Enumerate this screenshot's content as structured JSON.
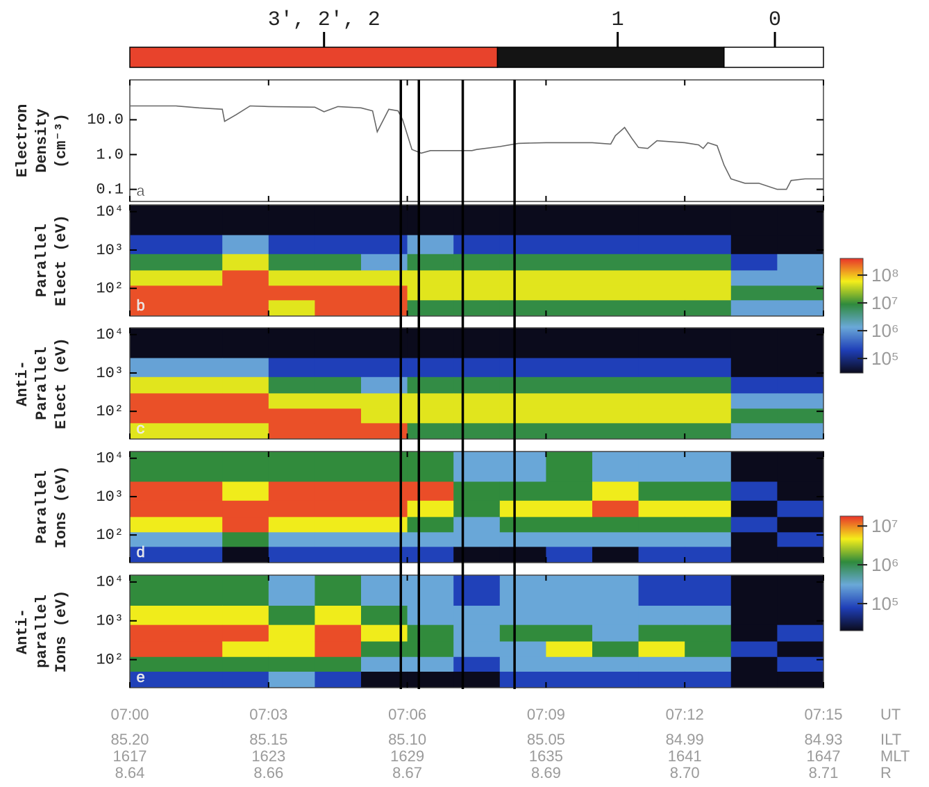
{
  "chart_data": [
    {
      "type": "timeline",
      "xlim": [
        0,
        15
      ],
      "segments": [
        {
          "start": 0,
          "end": 7.95,
          "color": "#e8432c"
        },
        {
          "start": 7.95,
          "end": 12.85,
          "color": "#141414"
        },
        {
          "start": 12.85,
          "end": 15,
          "color": "#ffffff"
        }
      ],
      "markers": [
        {
          "x": 4.2,
          "label": "3′, 2′, 2"
        },
        {
          "x": 10.55,
          "label": "1"
        },
        {
          "x": 13.95,
          "label": "0"
        }
      ]
    },
    {
      "type": "line",
      "panel_label": "a",
      "ylabel": [
        "Electron",
        "Density",
        "(cm⁻³)"
      ],
      "color": "#666666",
      "xlim": [
        0,
        15
      ],
      "ylim": [
        0.045,
        140
      ],
      "log_y": true,
      "yticks": [
        {
          "value": 0.1,
          "label": "0.1"
        },
        {
          "value": 1,
          "label": "1.0"
        },
        {
          "value": 10,
          "label": "10.0"
        }
      ],
      "x": [
        0,
        1,
        1.5,
        2.0,
        2.05,
        2.3,
        2.6,
        3,
        4,
        4.2,
        4.5,
        5,
        5.25,
        5.35,
        5.6,
        5.8,
        5.9,
        6.1,
        6.3,
        6.5,
        7,
        7.4,
        7.5,
        8,
        8.4,
        9,
        10,
        10.4,
        10.5,
        10.7,
        10.85,
        11,
        11.2,
        11.4,
        12,
        12.3,
        12.4,
        12.5,
        12.7,
        12.85,
        13,
        13.3,
        13.6,
        14,
        14.2,
        14.3,
        14.6,
        15
      ],
      "values": [
        25,
        25,
        22,
        20,
        9,
        14,
        25,
        24,
        23,
        17,
        24,
        22,
        18,
        4.5,
        20,
        18,
        10,
        1.4,
        1.1,
        1.3,
        1.3,
        1.3,
        1.4,
        1.7,
        2.1,
        2.2,
        2.2,
        2.0,
        3.5,
        6,
        3.0,
        1.6,
        1.5,
        2.5,
        2.2,
        1.9,
        1.5,
        2.2,
        1.8,
        0.5,
        0.2,
        0.15,
        0.15,
        0.1,
        0.1,
        0.18,
        0.2,
        0.2
      ],
      "vlines": [
        5.86,
        6.25,
        7.2,
        8.32
      ]
    },
    {
      "type": "heatmap",
      "panel_label": "b",
      "ylabel": [
        "Parallel",
        "Elect (eV)"
      ],
      "xlim": [
        0,
        15
      ],
      "ylim": [
        19,
        15000
      ],
      "log_y": true,
      "yticks": [
        {
          "value": 100,
          "label": "10²"
        },
        {
          "value": 1000,
          "label": "10³"
        },
        {
          "value": 10000,
          "label": "10⁴"
        }
      ],
      "xbins": [
        0,
        1,
        2,
        3,
        4,
        5,
        6,
        7,
        8,
        9,
        10,
        11,
        12,
        13,
        14,
        15
      ],
      "ybins": [
        19,
        50,
        120,
        300,
        800,
        2500,
        15000
      ],
      "colorbar": true,
      "zlim": [
        30000,
        400000000
      ],
      "zticks": [
        {
          "value": 100000,
          "label": "10⁵"
        },
        {
          "value": 1000000,
          "label": "10⁶"
        },
        {
          "value": 10000000,
          "label": "10⁷"
        },
        {
          "value": 100000000,
          "label": "10⁸"
        }
      ],
      "colormap": [
        "#0b0b1c",
        "#1f3fb8",
        "#6aa8d8",
        "#2f8a3c",
        "#f4ee1a",
        "#e8342a"
      ],
      "values": [
        [
          300000000.0,
          300000000.0,
          50000000.0,
          8000000.0,
          200000.0,
          30000.0
        ],
        [
          300000000.0,
          300000000.0,
          50000000.0,
          8000000.0,
          200000.0,
          30000.0
        ],
        [
          300000000.0,
          300000000.0,
          300000000.0,
          50000000.0,
          1200000.0,
          30000.0
        ],
        [
          50000000.0,
          300000000.0,
          50000000.0,
          8000000.0,
          200000.0,
          30000.0
        ],
        [
          300000000.0,
          300000000.0,
          50000000.0,
          8000000.0,
          200000.0,
          30000.0
        ],
        [
          300000000.0,
          300000000.0,
          50000000.0,
          1200000.0,
          200000.0,
          30000.0
        ],
        [
          8000000.0,
          50000000.0,
          50000000.0,
          8000000.0,
          1200000.0,
          30000.0
        ],
        [
          8000000.0,
          50000000.0,
          50000000.0,
          8000000.0,
          200000.0,
          30000.0
        ],
        [
          8000000.0,
          50000000.0,
          50000000.0,
          8000000.0,
          200000.0,
          30000.0
        ],
        [
          8000000.0,
          50000000.0,
          50000000.0,
          8000000.0,
          200000.0,
          30000.0
        ],
        [
          8000000.0,
          50000000.0,
          50000000.0,
          8000000.0,
          200000.0,
          30000.0
        ],
        [
          8000000.0,
          50000000.0,
          50000000.0,
          8000000.0,
          200000.0,
          30000.0
        ],
        [
          8000000.0,
          50000000.0,
          50000000.0,
          8000000.0,
          200000.0,
          30000.0
        ],
        [
          1200000.0,
          8000000.0,
          1200000.0,
          200000.0,
          30000.0,
          30000.0
        ],
        [
          1200000.0,
          8000000.0,
          1200000.0,
          1200000.0,
          30000.0,
          30000.0
        ]
      ]
    },
    {
      "type": "heatmap",
      "panel_label": "c",
      "ylabel": [
        "Anti-",
        "Parallel",
        "Elect (eV)"
      ],
      "xlim": [
        0,
        15
      ],
      "ylim": [
        19,
        15000
      ],
      "log_y": true,
      "yticks": [
        {
          "value": 100,
          "label": "10²"
        },
        {
          "value": 1000,
          "label": "10³"
        },
        {
          "value": 10000,
          "label": "10⁴"
        }
      ],
      "xbins": [
        0,
        1,
        2,
        3,
        4,
        5,
        6,
        7,
        8,
        9,
        10,
        11,
        12,
        13,
        14,
        15
      ],
      "ybins": [
        19,
        50,
        120,
        300,
        800,
        2500,
        15000
      ],
      "colorbar": false,
      "zlim": [
        30000,
        400000000
      ],
      "colormap": [
        "#0b0b1c",
        "#1f3fb8",
        "#6aa8d8",
        "#2f8a3c",
        "#f4ee1a",
        "#e8342a"
      ],
      "values": [
        [
          50000000.0,
          300000000.0,
          300000000.0,
          50000000.0,
          1200000.0,
          30000.0
        ],
        [
          50000000.0,
          300000000.0,
          300000000.0,
          50000000.0,
          1200000.0,
          30000.0
        ],
        [
          50000000.0,
          300000000.0,
          300000000.0,
          50000000.0,
          1200000.0,
          30000.0
        ],
        [
          300000000.0,
          300000000.0,
          50000000.0,
          8000000.0,
          200000.0,
          30000.0
        ],
        [
          300000000.0,
          300000000.0,
          50000000.0,
          8000000.0,
          200000.0,
          30000.0
        ],
        [
          300000000.0,
          50000000.0,
          50000000.0,
          1200000.0,
          200000.0,
          30000.0
        ],
        [
          8000000.0,
          50000000.0,
          50000000.0,
          8000000.0,
          200000.0,
          30000.0
        ],
        [
          8000000.0,
          50000000.0,
          50000000.0,
          8000000.0,
          200000.0,
          30000.0
        ],
        [
          8000000.0,
          50000000.0,
          50000000.0,
          8000000.0,
          200000.0,
          30000.0
        ],
        [
          8000000.0,
          50000000.0,
          50000000.0,
          8000000.0,
          200000.0,
          30000.0
        ],
        [
          8000000.0,
          50000000.0,
          50000000.0,
          8000000.0,
          200000.0,
          30000.0
        ],
        [
          8000000.0,
          50000000.0,
          50000000.0,
          8000000.0,
          200000.0,
          30000.0
        ],
        [
          8000000.0,
          50000000.0,
          50000000.0,
          8000000.0,
          200000.0,
          30000.0
        ],
        [
          1200000.0,
          8000000.0,
          1200000.0,
          200000.0,
          30000.0,
          30000.0
        ],
        [
          1200000.0,
          8000000.0,
          1200000.0,
          200000.0,
          30000.0,
          30000.0
        ]
      ]
    },
    {
      "type": "heatmap",
      "panel_label": "d",
      "ylabel": [
        "Parallel",
        "Ions (eV)"
      ],
      "xlim": [
        0,
        15
      ],
      "ylim": [
        19,
        15000
      ],
      "log_y": true,
      "yticks": [
        {
          "value": 100,
          "label": "10²"
        },
        {
          "value": 1000,
          "label": "10³"
        },
        {
          "value": 10000,
          "label": "10⁴"
        }
      ],
      "xbins": [
        0,
        1,
        2,
        3,
        4,
        5,
        6,
        7,
        8,
        9,
        10,
        11,
        12,
        13,
        14,
        15
      ],
      "ybins": [
        19,
        50,
        120,
        300,
        800,
        2500,
        15000
      ],
      "colorbar": true,
      "zlim": [
        20000,
        18000000
      ],
      "zticks": [
        {
          "value": 100000,
          "label": "10⁵"
        },
        {
          "value": 1000000,
          "label": "10⁶"
        },
        {
          "value": 10000000,
          "label": "10⁷"
        }
      ],
      "colormap": [
        "#0b0b1c",
        "#1f3fb8",
        "#6aa8d8",
        "#2f8a3c",
        "#f4ee1a",
        "#e8342a"
      ],
      "values": [
        [
          80000.0,
          300000.0,
          4500000.0,
          15000000.0,
          15000000.0,
          1200000.0
        ],
        [
          80000.0,
          300000.0,
          4500000.0,
          15000000.0,
          15000000.0,
          1200000.0
        ],
        [
          20000.0,
          1200000.0,
          15000000.0,
          15000000.0,
          4500000.0,
          1200000.0
        ],
        [
          80000.0,
          300000.0,
          4500000.0,
          15000000.0,
          15000000.0,
          1200000.0
        ],
        [
          80000.0,
          300000.0,
          4500000.0,
          15000000.0,
          15000000.0,
          1200000.0
        ],
        [
          80000.0,
          300000.0,
          4500000.0,
          15000000.0,
          15000000.0,
          1200000.0
        ],
        [
          80000.0,
          300000.0,
          1200000.0,
          4500000.0,
          15000000.0,
          1200000.0
        ],
        [
          20000.0,
          300000.0,
          300000.0,
          1200000.0,
          1200000.0,
          300000.0
        ],
        [
          20000.0,
          300000.0,
          1200000.0,
          4500000.0,
          1200000.0,
          300000.0
        ],
        [
          80000.0,
          300000.0,
          1200000.0,
          4500000.0,
          1200000.0,
          1200000.0
        ],
        [
          20000.0,
          300000.0,
          1200000.0,
          15000000.0,
          4500000.0,
          300000.0
        ],
        [
          80000.0,
          300000.0,
          1200000.0,
          4500000.0,
          1200000.0,
          300000.0
        ],
        [
          80000.0,
          300000.0,
          1200000.0,
          4500000.0,
          1200000.0,
          300000.0
        ],
        [
          20000.0,
          20000.0,
          80000.0,
          20000.0,
          80000.0,
          20000.0
        ],
        [
          20000.0,
          80000.0,
          20000.0,
          80000.0,
          20000.0,
          20000.0
        ]
      ]
    },
    {
      "type": "heatmap",
      "panel_label": "e",
      "ylabel": [
        "Anti-",
        "parallel",
        "Ions (eV)"
      ],
      "xlim": [
        0,
        15
      ],
      "ylim": [
        19,
        15000
      ],
      "log_y": true,
      "yticks": [
        {
          "value": 100,
          "label": "10²"
        },
        {
          "value": 1000,
          "label": "10³"
        },
        {
          "value": 10000,
          "label": "10⁴"
        }
      ],
      "xbins": [
        0,
        1,
        2,
        3,
        4,
        5,
        6,
        7,
        8,
        9,
        10,
        11,
        12,
        13,
        14,
        15
      ],
      "ybins": [
        19,
        50,
        120,
        300,
        800,
        2500,
        15000
      ],
      "colorbar": false,
      "zlim": [
        20000,
        18000000
      ],
      "colormap": [
        "#0b0b1c",
        "#1f3fb8",
        "#6aa8d8",
        "#2f8a3c",
        "#f4ee1a",
        "#e8342a"
      ],
      "values": [
        [
          80000.0,
          1200000.0,
          15000000.0,
          15000000.0,
          4500000.0,
          1200000.0
        ],
        [
          80000.0,
          1200000.0,
          15000000.0,
          15000000.0,
          4500000.0,
          1200000.0
        ],
        [
          80000.0,
          1200000.0,
          4500000.0,
          15000000.0,
          4500000.0,
          1200000.0
        ],
        [
          300000.0,
          1200000.0,
          4500000.0,
          4500000.0,
          1200000.0,
          300000.0
        ],
        [
          80000.0,
          1200000.0,
          15000000.0,
          15000000.0,
          4500000.0,
          1200000.0
        ],
        [
          20000.0,
          300000.0,
          1200000.0,
          4500000.0,
          1200000.0,
          300000.0
        ],
        [
          20000.0,
          300000.0,
          1200000.0,
          1200000.0,
          300000.0,
          300000.0
        ],
        [
          20000.0,
          80000.0,
          300000.0,
          300000.0,
          300000.0,
          80000.0
        ],
        [
          80000.0,
          300000.0,
          300000.0,
          1200000.0,
          300000.0,
          300000.0
        ],
        [
          80000.0,
          300000.0,
          4500000.0,
          1200000.0,
          300000.0,
          300000.0
        ],
        [
          80000.0,
          300000.0,
          1200000.0,
          300000.0,
          300000.0,
          300000.0
        ],
        [
          80000.0,
          300000.0,
          4500000.0,
          1200000.0,
          300000.0,
          80000.0
        ],
        [
          80000.0,
          300000.0,
          1200000.0,
          1200000.0,
          300000.0,
          80000.0
        ],
        [
          20000.0,
          20000.0,
          80000.0,
          20000.0,
          20000.0,
          20000.0
        ],
        [
          20000.0,
          80000.0,
          20000.0,
          80000.0,
          20000.0,
          20000.0
        ]
      ],
      "xticks": [
        {
          "value": 0,
          "label": "07:00"
        },
        {
          "value": 3,
          "label": "07:03"
        },
        {
          "value": 6,
          "label": "07:06"
        },
        {
          "value": 9,
          "label": "07:09"
        },
        {
          "value": 12,
          "label": "07:12"
        },
        {
          "value": 15,
          "label": "07:15"
        }
      ],
      "xlabel": "UT",
      "extra_rows": [
        {
          "name": "ILT",
          "labels": [
            "85.20",
            "85.15",
            "85.10",
            "85.05",
            "84.99",
            "84.93"
          ]
        },
        {
          "name": "MLT",
          "labels": [
            "1617",
            "1623",
            "1629",
            "1635",
            "1641",
            "1647"
          ]
        },
        {
          "name": "R",
          "labels": [
            "8.64",
            "8.66",
            "8.67",
            "8.69",
            "8.70",
            "8.71"
          ]
        }
      ]
    }
  ]
}
